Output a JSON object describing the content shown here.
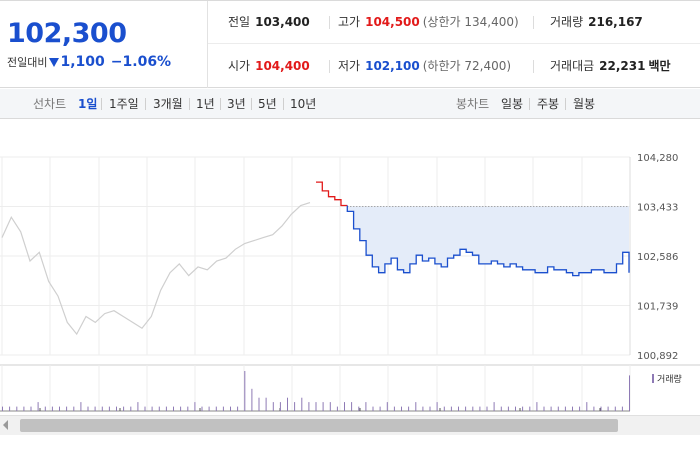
{
  "quote": {
    "price": "102,300",
    "change_label": "전일대비",
    "change_value": "1,100",
    "change_pct": "−1.06%",
    "prev_close": {
      "label": "전일",
      "value": "103,400"
    },
    "high": {
      "label": "고가",
      "value": "104,500",
      "limit": "(상한가 134,400)"
    },
    "volume": {
      "label": "거래량",
      "value": "216,167"
    },
    "open": {
      "label": "시가",
      "value": "104,400"
    },
    "low": {
      "label": "저가",
      "value": "102,100",
      "limit": "(하한가 72,400)"
    },
    "amount": {
      "label": "거래대금",
      "value": "22,231",
      "unit": "백만"
    }
  },
  "tabs": {
    "line_title": "선차트",
    "line_items": [
      "1일",
      "1주일",
      "3개월",
      "1년",
      "3년",
      "5년",
      "10년"
    ],
    "line_active": 0,
    "candle_title": "봉차트",
    "candle_items": [
      "일봉",
      "주봉",
      "월봉"
    ]
  },
  "colors": {
    "down": "#1a4fce",
    "up": "#e21a1a",
    "prev_day_line": "#cfcfcf",
    "fill": "#e4ecf9",
    "volume": "#8e7ab5"
  },
  "chart_data": {
    "type": "line",
    "y_ticks": [
      "104,280",
      "103,433",
      "102,586",
      "101,739",
      "100,892"
    ],
    "ylim": [
      100892,
      104280
    ],
    "reference_price": 103433,
    "volume_label": "거래량",
    "series": [
      {
        "values": [
          102900,
          103250,
          103000,
          102500,
          102650,
          102150,
          101900,
          101450,
          101250,
          101550,
          101450,
          101600,
          101650,
          101550,
          101450,
          101350,
          101550,
          102000,
          102300,
          102450,
          102250,
          102400,
          102350,
          102500,
          102550,
          102700,
          102800,
          102850,
          102900,
          102950,
          103100,
          103300,
          103450,
          103500
        ]
      },
      {
        "values": [
          103850,
          103700,
          103600,
          103550,
          103450,
          103350,
          103050,
          102850,
          102600,
          102400,
          102300,
          102450,
          102550,
          102350,
          102300,
          102450,
          102600,
          102500,
          102550,
          102450,
          102400,
          102550,
          102600,
          102700,
          102650,
          102600,
          102450,
          102450,
          102500,
          102450,
          102400,
          102450,
          102400,
          102350,
          102350,
          102300,
          102300,
          102400,
          102350,
          102350,
          102300,
          102250,
          102300,
          102300,
          102350,
          102350,
          102300,
          102300,
          102450,
          102650,
          102300
        ]
      }
    ],
    "volume": [
      1,
      1,
      1,
      1,
      1,
      2,
      1,
      1,
      1,
      1,
      1,
      2,
      1,
      1,
      1,
      1,
      1,
      1,
      1,
      2,
      1,
      1,
      1,
      1,
      1,
      1,
      1,
      2,
      1,
      1,
      1,
      1,
      1,
      1,
      9,
      5,
      3,
      3,
      2,
      2,
      3,
      2,
      3,
      2,
      2,
      2,
      2,
      1,
      2,
      2,
      1,
      2,
      1,
      1,
      2,
      1,
      1,
      1,
      2,
      1,
      1,
      2,
      1,
      1,
      1,
      1,
      1,
      1,
      1,
      2,
      1,
      1,
      1,
      1,
      1,
      2,
      1,
      1,
      1,
      1,
      1,
      1,
      2,
      1,
      1,
      1,
      1,
      1,
      8
    ]
  }
}
